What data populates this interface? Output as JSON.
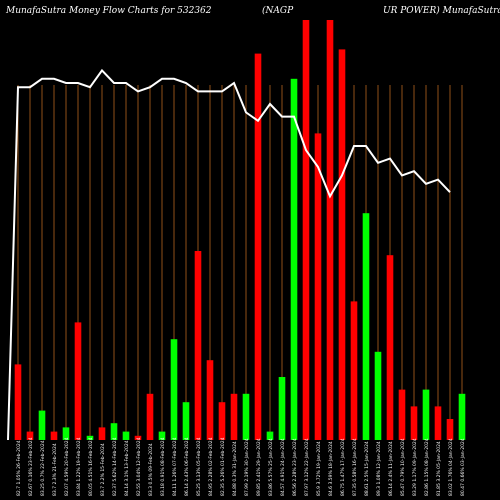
{
  "chart_data": {
    "type": "bar",
    "title": "MunafaSutra  Money Flow  Charts for 532362",
    "title_right_part1": "(NAGP",
    "title_right_part2": "UR POWER) MunafaSutra",
    "colors": {
      "background": "#000000",
      "grid": "#b5651d",
      "up": "#00ff00",
      "down": "#ff0000",
      "line": "#ffffff"
    },
    "ylim": [
      0,
      100
    ],
    "categories": [
      "26-Feb-2024",
      "23-Feb-2024",
      "22-Feb-2024",
      "21-Feb-2024",
      "20-Feb-2024",
      "19-Feb-2024",
      "16-Feb-2024",
      "15-Feb-2024",
      "14-Feb-2024",
      "13-Feb-2024",
      "12-Feb-2024",
      "09-Feb-2024",
      "08-Feb-2024",
      "07-Feb-2024",
      "06-Feb-2024",
      "05-Feb-2024",
      "02-Feb-2024",
      "01-Feb-2024",
      "31-Jan-2024",
      "30-Jan-2024",
      "29-Jan-2024",
      "25-Jan-2024",
      "24-Jan-2024",
      "23-Jan-2024",
      "22-Jan-2024",
      "19-Jan-2024",
      "18-Jan-2024",
      "17-Jan-2024",
      "16-Jan-2024",
      "15-Jan-2024",
      "12-Jan-2024",
      "11-Jan-2024",
      "10-Jan-2024",
      "09-Jan-2024",
      "08-Jan-2024",
      "05-Jan-2024",
      "04-Jan-2024",
      "03-Jan-2024",
      "02-Jan-2024",
      "01-Jan-2024",
      "29-Dec-2023",
      "28-Dec-2023",
      "27-Dec-2023",
      "26-Dec-2023",
      "22-Dec-2023",
      "21-Dec-2023",
      "20-Dec-2023",
      "19-Dec-2023",
      "18-Dec-2023",
      "15-Dec-2023",
      "14-Dec-2023",
      "13-Dec-2023",
      "12-Dec-2023",
      "11-Dec-2023",
      "08-Dec-2023",
      "07-Dec-2023",
      "06-Dec-2023",
      "05-Dec-2023",
      "04-Dec-2023",
      "01-Dec-2023"
    ],
    "tick_labels": [
      "82.7 1.05%",
      "82.67 0.16%",
      "83.25 0.7%",
      "83.7 2.3%",
      "82.07 4.59%",
      "83.84 1.22%",
      "80.05 4.51%",
      "83.7 2.2%",
      "82.37 5.62%",
      "84.14 3.1%",
      "82.55 3.04%",
      "83.3 0.5%",
      "83.18 0.91%",
      "84.11 1.26%",
      "86.14 2.43%",
      "85.25 3.13%",
      "84.95 2.28%",
      "82.35 5.26%",
      "84.88 0.3%",
      "87.99 2.19%",
      "89.85 2.41%",
      "83.86 5.57%",
      "84.57 4.91%",
      "86.56 2.28%",
      "87.97 3.12%",
      "85.9 3.72%",
      "84.6 3.59%",
      "86.75 1.47%",
      "87.35 0.58%",
      "88.61 2.5%",
      "89.3 1.08%",
      "86.14 2.4%",
      "85.47 0.79%",
      "83.29 1.17%",
      "82.86 1.15%",
      "81.85 3.2%",
      "83.02 1.76%",
      "80.47 0.66%",
      "81.05 1.25%",
      "82.45 3.33%",
      "85.5 2.5%",
      "86.82 1.81%",
      "83.75 1.1%",
      "84.7 0.18%",
      "83.04 0.35%",
      "82.8 2.13%",
      "85.1 1.58%",
      "87.4 2.43%",
      "89.3 0.77%",
      "90.5 1.86%",
      "88.25 3.82%",
      "86.1 2.8%",
      "85.07 0.87%",
      "85.31 1.22%",
      "84.06 0.31%",
      "82.6 1.55%",
      "83.4 0.77%",
      "82.9 1.69%",
      "84.3 1.1%",
      "85.66 2.8%"
    ]
  }
}
